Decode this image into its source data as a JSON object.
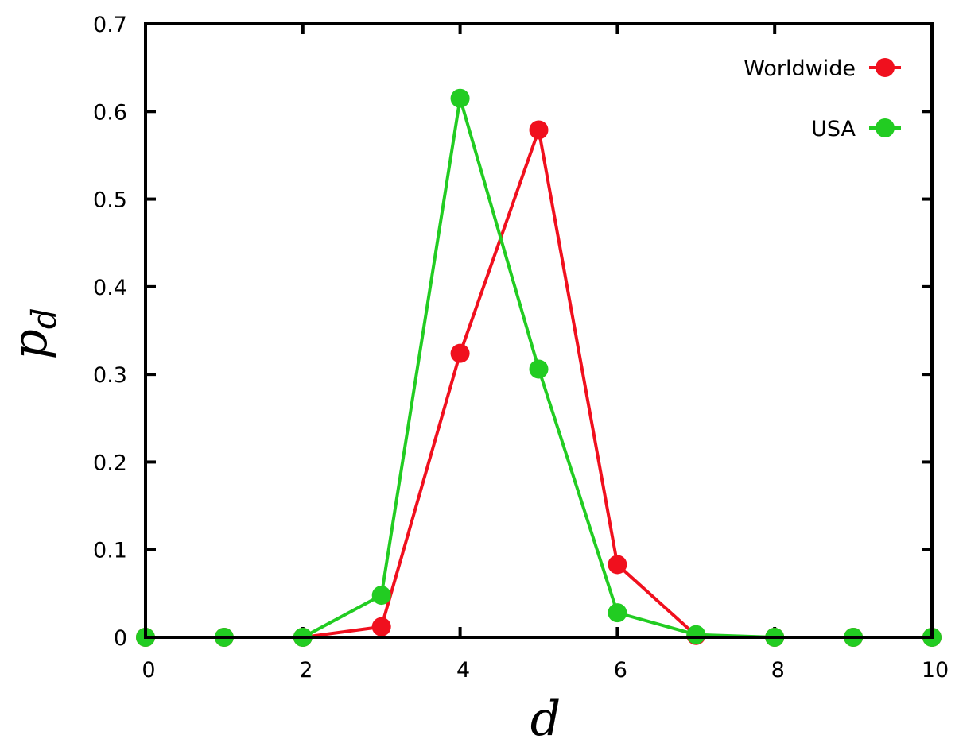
{
  "chart_data": {
    "type": "line",
    "xlabel": "d",
    "ylabel_main": "p",
    "ylabel_sub": "d",
    "xlim": [
      0,
      10
    ],
    "ylim": [
      0,
      0.7
    ],
    "xticks": [
      0,
      2,
      4,
      6,
      8,
      10
    ],
    "xtick_labels": [
      "0",
      "2",
      "4",
      "6",
      "8",
      "10"
    ],
    "yticks": [
      0,
      0.1,
      0.2,
      0.3,
      0.4,
      0.5,
      0.6,
      0.7
    ],
    "ytick_labels": [
      "0",
      "0.1",
      "0.2",
      "0.3",
      "0.4",
      "0.5",
      "0.6",
      "0.7"
    ],
    "grid": false,
    "legend_position": "top-right",
    "x": [
      0,
      1,
      2,
      3,
      4,
      5,
      6,
      7,
      8,
      9,
      10
    ],
    "series": [
      {
        "name": "Worldwide",
        "color": "#f0101e",
        "values": [
          0,
          0,
          0,
          0.012,
          0.324,
          0.579,
          0.083,
          0.002,
          0,
          0,
          0
        ]
      },
      {
        "name": "USA",
        "color": "#22cc22",
        "values": [
          0,
          0,
          0,
          0.048,
          0.615,
          0.306,
          0.028,
          0.003,
          0,
          0,
          0
        ]
      }
    ]
  }
}
